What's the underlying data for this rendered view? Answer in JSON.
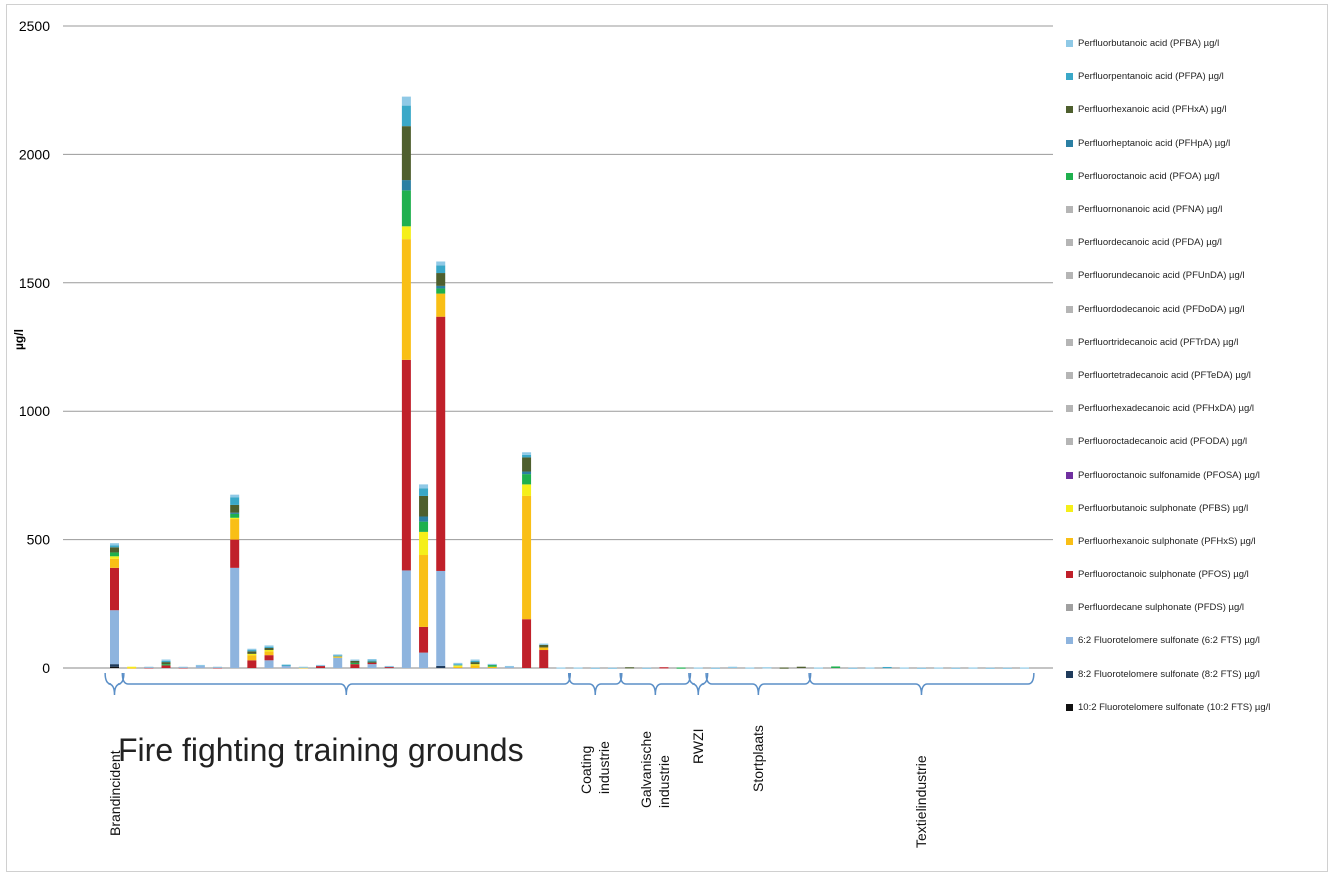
{
  "chart_data": {
    "type": "bar",
    "stacked": true,
    "ylabel": "µg/l",
    "ylim": [
      0,
      2500
    ],
    "yticks": [
      0,
      500,
      1000,
      1500,
      2000,
      2500
    ],
    "grid": true,
    "legend_position": "right",
    "series": [
      {
        "name": "Perfluorbutanoic acid (PFBA) µg/l",
        "color": "#8fc9e6"
      },
      {
        "name": "Perfluorpentanoic acid (PFPA) µg/l",
        "color": "#3aa8c8"
      },
      {
        "name": "Perfluorhexanoic acid (PFHxA) µg/l",
        "color": "#4e5f2e"
      },
      {
        "name": "Perfluorheptanoic acid (PFHpA) µg/l",
        "color": "#2b7fa3"
      },
      {
        "name": "Perfluoroctanoic acid (PFOA) µg/l",
        "color": "#1fb04e"
      },
      {
        "name": "Perfluornonanoic acid (PFNA) µg/l",
        "color": "#b5b5b5"
      },
      {
        "name": "Perfluordecanoic acid (PFDA) µg/l",
        "color": "#b5b5b5"
      },
      {
        "name": "Perfluorundecanoic acid (PFUnDA) µg/l",
        "color": "#b5b5b5"
      },
      {
        "name": "Perfluordodecanoic acid (PFDoDA) µg/l",
        "color": "#b5b5b5"
      },
      {
        "name": "Perfluortridecanoic acid (PFTrDA) µg/l",
        "color": "#b5b5b5"
      },
      {
        "name": "Perfluortetradecanoic acid (PFTeDA) µg/l",
        "color": "#b5b5b5"
      },
      {
        "name": "Perfluorhexadecanoic acid (PFHxDA) µg/l",
        "color": "#b5b5b5"
      },
      {
        "name": "Perfluoroctadecanoic acid (PFODA) µg/l",
        "color": "#b5b5b5"
      },
      {
        "name": "Perfluoroctanoic sulfonamide (PFOSA) µg/l",
        "color": "#7030a0"
      },
      {
        "name": "Perfluorbutanoic sulphonate (PFBS) µg/l",
        "color": "#f5ef1a"
      },
      {
        "name": "Perfluorhexanoic sulphonate (PFHxS) µg/l",
        "color": "#f9bf16"
      },
      {
        "name": "Perfluoroctanoic sulphonate (PFOS) µg/l",
        "color": "#c0202a"
      },
      {
        "name": "Perfluordecane sulphonate (PFDS) µg/l",
        "color": "#a0a0a0"
      },
      {
        "name": "6:2 Fluorotelomere sulfonate (6:2 FTS) µg/l",
        "color": "#8eb4de"
      },
      {
        "name": "8:2 Fluorotelomere sulfonate (8:2 FTS) µg/l",
        "color": "#1f3b5c"
      },
      {
        "name": "10:2 Fluorotelomere sulfonate (10:2 FTS) µg/l",
        "color": "#111111"
      }
    ],
    "bars": [
      {
        "FTS102": 5,
        "FTS82": 10,
        "FTS62": 210,
        "PFOS": 165,
        "PFHxS": 35,
        "PFBS": 10,
        "PFOA": 15,
        "PFHxA": 20,
        "PFPA": 8,
        "PFBA": 8
      },
      {
        "PFBS": 3,
        "PFHxS": 2
      },
      {
        "PFOS": 3,
        "PFBA": 2
      },
      {
        "PFOS": 10,
        "PFOA": 5,
        "PFHxA": 8,
        "PFPA": 5,
        "PFBA": 5
      },
      {
        "PFOS": 3,
        "PFBA": 2
      },
      {
        "FTS62": 8,
        "PFBA": 4
      },
      {
        "PFOS": 3,
        "PFBA": 2
      },
      {
        "FTS62": 390,
        "PFOS": 110,
        "PFHxS": 80,
        "PFBS": 5,
        "PFOA": 15,
        "PFHxA": 30,
        "PFHpA": 5,
        "PFPA": 30,
        "PFBA": 10
      },
      {
        "PFOS": 30,
        "PFHxS": 20,
        "PFBS": 5,
        "PFHxA": 10,
        "PFPA": 5,
        "PFBA": 5
      },
      {
        "FTS62": 30,
        "PFOS": 20,
        "PFHxS": 15,
        "PFBS": 5,
        "PFHxA": 8,
        "PFPA": 5,
        "PFBA": 5
      },
      {
        "FTS62": 10,
        "PFPA": 3
      },
      {
        "PFHxS": 3,
        "PFBA": 2
      },
      {
        "PFOS": 10,
        "PFBA": 2
      },
      {
        "FTS62": 40,
        "PFHxS": 5,
        "PFPA": 5,
        "PFBA": 3
      },
      {
        "PFOS": 15,
        "PFOA": 5,
        "PFHxA": 8,
        "PFBA": 5
      },
      {
        "FTS62": 15,
        "PFOS": 5,
        "PFHxA": 5,
        "PFPA": 5,
        "PFBA": 5
      },
      {
        "PFOS": 5,
        "PFBA": 3
      },
      {
        "FTS62": 380,
        "PFOS": 820,
        "PFHxS": 470,
        "PFBS": 50,
        "PFOA": 140,
        "PFHpA": 40,
        "PFHxA": 210,
        "PFPA": 80,
        "PFBA": 35
      },
      {
        "FTS62": 60,
        "PFOS": 100,
        "PFHxS": 280,
        "PFBS": 90,
        "PFOA": 40,
        "PFHpA": 20,
        "PFHxA": 80,
        "PFPA": 30,
        "PFBA": 15
      },
      {
        "FTS82": 8,
        "FTS62": 370,
        "PFOS": 990,
        "PFHxS": 90,
        "PFOA": 20,
        "PFHpA": 10,
        "PFHxA": 50,
        "PFPA": 30,
        "PFBA": 15
      },
      {
        "PFBS": 5,
        "PFHxS": 5,
        "PFPA": 5,
        "PFBA": 5
      },
      {
        "PFHxS": 10,
        "PFBS": 5,
        "PFHxA": 8,
        "PFPA": 5,
        "PFBA": 5
      },
      {
        "PFHxS": 5,
        "PFOA": 8,
        "PFBA": 3
      },
      {
        "FTS62": 5,
        "PFBA": 3
      },
      {
        "PFOS": 190,
        "PFHxS": 480,
        "PFBS": 45,
        "PFOA": 40,
        "PFHpA": 10,
        "PFHxA": 55,
        "PFPA": 10,
        "PFBA": 10
      },
      {
        "PFOS": 70,
        "PFHxS": 10,
        "PFHxA": 10,
        "PFBA": 5
      },
      {
        "PFBA": 2
      },
      {
        "PFBA": 2
      },
      {
        "PFBA": 1
      },
      {
        "PFBA": 1
      },
      {
        "PFHxA": 3
      },
      {
        "PFBA": 1
      },
      {
        "PFOS": 3
      },
      {
        "PFOA": 2
      },
      {
        "PFBA": 2
      },
      {
        "PFBA": 1
      },
      {
        "PFBA": 5
      },
      {
        "PFBA": 2
      },
      {
        "PFBA": 3
      },
      {
        "PFHxA": 2
      },
      {
        "PFHxA": 5
      },
      {
        "PFBA": 2
      },
      {
        "PFOA": 6
      },
      {
        "PFBA": 1
      },
      {
        "PFBA": 2
      },
      {
        "PFPA": 4
      },
      {
        "PFBA": 2
      },
      {
        "PFBA": 1
      },
      {
        "PFBA": 2
      },
      {
        "PFBA": 1
      },
      {
        "PFBA": 2
      },
      {
        "PFBA": 1
      },
      {
        "PFBA": 1
      },
      {
        "PFBA": 2
      }
    ],
    "groups": [
      {
        "label": "Brandincident",
        "first": 0,
        "last": 0
      },
      {
        "label": "Fire fighting training grounds",
        "first": 1,
        "last": 26
      },
      {
        "label": "Coating\nindustrie",
        "first": 27,
        "last": 29
      },
      {
        "label": "Galvanische\nindustrie",
        "first": 30,
        "last": 33
      },
      {
        "label": "RWZI",
        "first": 34,
        "last": 34
      },
      {
        "label": "Stortplaats",
        "first": 35,
        "last": 40
      },
      {
        "label": "Textielindustrie",
        "first": 41,
        "last": 53
      }
    ]
  }
}
